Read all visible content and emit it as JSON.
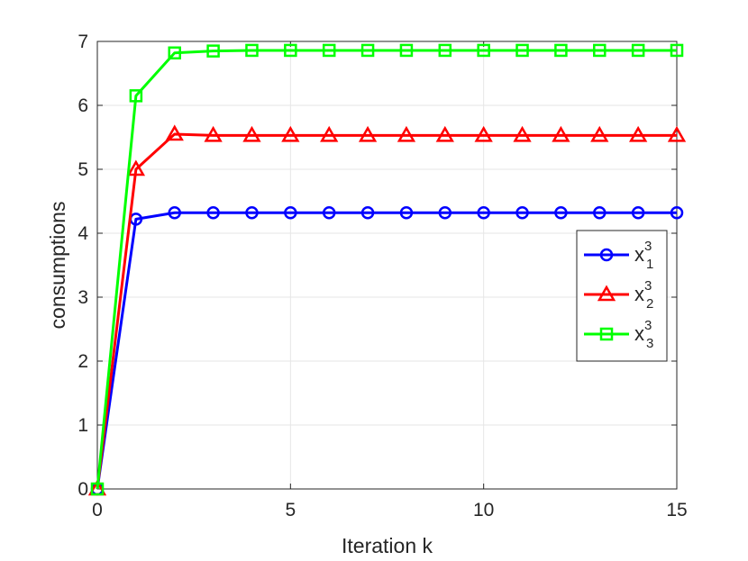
{
  "chart_data": {
    "type": "line",
    "xlabel": "Iteration k",
    "ylabel": "consumptions",
    "xlim": [
      0,
      15
    ],
    "ylim": [
      0,
      7
    ],
    "xticks": [
      0,
      5,
      10,
      15
    ],
    "yticks": [
      0,
      1,
      2,
      3,
      4,
      5,
      6,
      7
    ],
    "grid": true,
    "legend_position": "right",
    "x": [
      0,
      1,
      2,
      3,
      4,
      5,
      6,
      7,
      8,
      9,
      10,
      11,
      12,
      13,
      14,
      15
    ],
    "series": [
      {
        "name": "x",
        "sup": "3",
        "sub": "1",
        "color": "#0000ff",
        "marker": "circle",
        "values": [
          0,
          4.22,
          4.32,
          4.32,
          4.32,
          4.32,
          4.32,
          4.32,
          4.32,
          4.32,
          4.32,
          4.32,
          4.32,
          4.32,
          4.32,
          4.32
        ]
      },
      {
        "name": "x",
        "sup": "3",
        "sub": "2",
        "color": "#ff0000",
        "marker": "triangle",
        "values": [
          0,
          5.0,
          5.55,
          5.53,
          5.53,
          5.53,
          5.53,
          5.53,
          5.53,
          5.53,
          5.53,
          5.53,
          5.53,
          5.53,
          5.53,
          5.53
        ]
      },
      {
        "name": "x",
        "sup": "3",
        "sub": "3",
        "color": "#00ff00",
        "marker": "square",
        "values": [
          0,
          6.15,
          6.82,
          6.85,
          6.86,
          6.86,
          6.86,
          6.86,
          6.86,
          6.86,
          6.86,
          6.86,
          6.86,
          6.86,
          6.86,
          6.86
        ]
      }
    ]
  }
}
